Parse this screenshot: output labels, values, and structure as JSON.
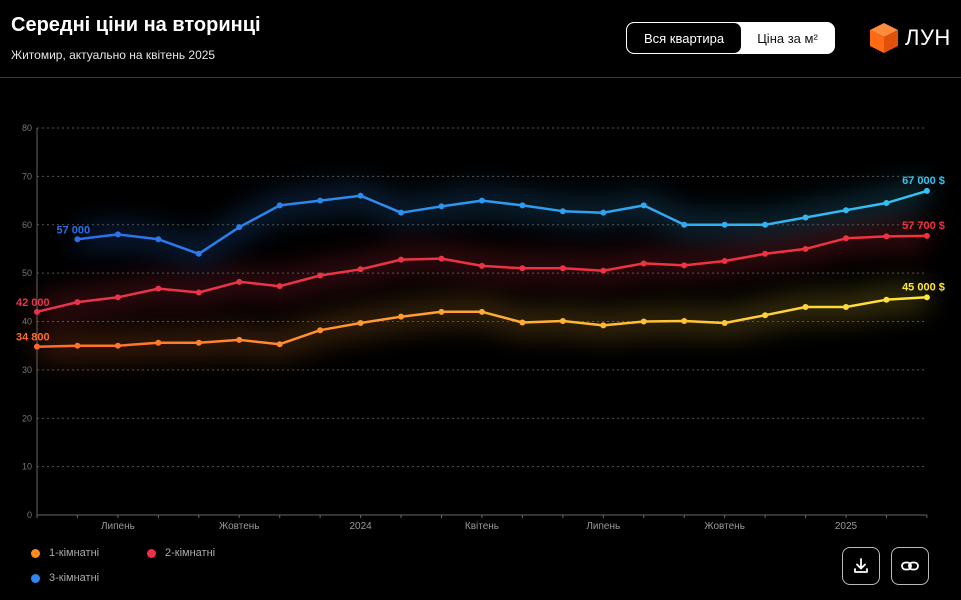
{
  "header": {
    "title": "Середні ціни на вторинці",
    "subtitle": "Житомир, актуально на квітень 2025",
    "toggle": {
      "options": [
        "Вся квартира",
        "Ціна за м²"
      ],
      "active": 0
    },
    "logo_text": "ЛУН",
    "logo_color": "#ff6a13"
  },
  "legend": [
    {
      "label": "1-кімнатні",
      "color": "#ff8a1f"
    },
    {
      "label": "2-кімнатні",
      "color": "#f02d4b"
    },
    {
      "label": "3-кімнатні",
      "color": "#2f86f0"
    }
  ],
  "actions": {
    "download_icon": "download-icon",
    "link_icon": "link-icon"
  },
  "chart_data": {
    "type": "line",
    "ylim": [
      0,
      80
    ],
    "yticks": [
      0,
      10,
      20,
      30,
      40,
      50,
      60,
      70,
      80
    ],
    "grid": true,
    "x_tick_labels": [
      {
        "label": "Липень",
        "index": 2
      },
      {
        "label": "Жовтень",
        "index": 5
      },
      {
        "label": "2024",
        "index": 8
      },
      {
        "label": "Квітень",
        "index": 11
      },
      {
        "label": "Липень",
        "index": 14
      },
      {
        "label": "Жовтень",
        "index": 17
      },
      {
        "label": "2025",
        "index": 20
      }
    ],
    "series": [
      {
        "name": "3-кімнатні",
        "color_start": "#2a6fe8",
        "color_end": "#34c3f2",
        "start_index": 1,
        "values": [
          57.0,
          58.0,
          57.0,
          54.0,
          59.5,
          64.0,
          65.0,
          66.0,
          62.5,
          63.8,
          65.0,
          64.0,
          62.8,
          62.5,
          64.0,
          60.0,
          60.0,
          60.0,
          61.5,
          63.0,
          64.5,
          67.0
        ],
        "start_label": "57 000",
        "end_label": "67 000 $"
      },
      {
        "name": "2-кімнатні",
        "color_start": "#e8344a",
        "color_end": "#f0323f",
        "start_index": 0,
        "values": [
          42.0,
          44.0,
          45.0,
          46.8,
          46.0,
          48.2,
          47.3,
          49.5,
          50.8,
          52.8,
          53.0,
          51.5,
          51.0,
          51.0,
          50.5,
          52.0,
          51.6,
          52.5,
          54.0,
          55.0,
          57.2,
          57.6,
          57.7
        ],
        "start_label": "42 000",
        "end_label": "57 700 $"
      },
      {
        "name": "1-кімнатні",
        "color_start": "#ff6a2a",
        "color_end": "#ffe63a",
        "start_index": 0,
        "values": [
          34.8,
          35.0,
          35.0,
          35.6,
          35.6,
          36.2,
          35.3,
          38.2,
          39.7,
          41.0,
          42.0,
          42.0,
          39.8,
          40.1,
          39.2,
          40.0,
          40.1,
          39.7,
          41.3,
          43.0,
          43.0,
          44.5,
          45.0
        ],
        "start_label": "34 800",
        "end_label": "45 000 $"
      }
    ]
  }
}
